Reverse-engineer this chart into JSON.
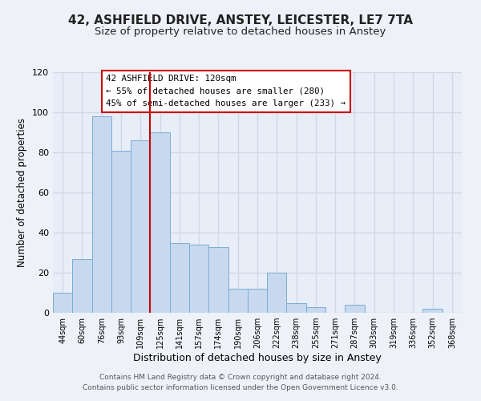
{
  "title": "42, ASHFIELD DRIVE, ANSTEY, LEICESTER, LE7 7TA",
  "subtitle": "Size of property relative to detached houses in Anstey",
  "xlabel": "Distribution of detached houses by size in Anstey",
  "ylabel": "Number of detached properties",
  "bin_labels": [
    "44sqm",
    "60sqm",
    "76sqm",
    "93sqm",
    "109sqm",
    "125sqm",
    "141sqm",
    "157sqm",
    "174sqm",
    "190sqm",
    "206sqm",
    "222sqm",
    "238sqm",
    "255sqm",
    "271sqm",
    "287sqm",
    "303sqm",
    "319sqm",
    "336sqm",
    "352sqm",
    "368sqm"
  ],
  "bar_heights": [
    10,
    27,
    98,
    81,
    86,
    90,
    35,
    34,
    33,
    12,
    12,
    20,
    5,
    3,
    0,
    4,
    0,
    0,
    0,
    2,
    0
  ],
  "bar_color": "#c8d8ee",
  "bar_edge_color": "#7badd4",
  "highlight_line_index": 5,
  "highlight_line_color": "#cc0000",
  "ylim": [
    0,
    120
  ],
  "yticks": [
    0,
    20,
    40,
    60,
    80,
    100,
    120
  ],
  "annotation_title": "42 ASHFIELD DRIVE: 120sqm",
  "annotation_line1": "← 55% of detached houses are smaller (280)",
  "annotation_line2": "45% of semi-detached houses are larger (233) →",
  "annotation_box_color": "#ffffff",
  "annotation_box_edge": "#cc0000",
  "footer_line1": "Contains HM Land Registry data © Crown copyright and database right 2024.",
  "footer_line2": "Contains public sector information licensed under the Open Government Licence v3.0.",
  "background_color": "#eef2f8",
  "plot_bg_color": "#e8eef8",
  "grid_color": "#d0d8e8",
  "title_fontsize": 11,
  "subtitle_fontsize": 9.5,
  "xlabel_fontsize": 9,
  "ylabel_fontsize": 8.5,
  "footer_fontsize": 6.5
}
